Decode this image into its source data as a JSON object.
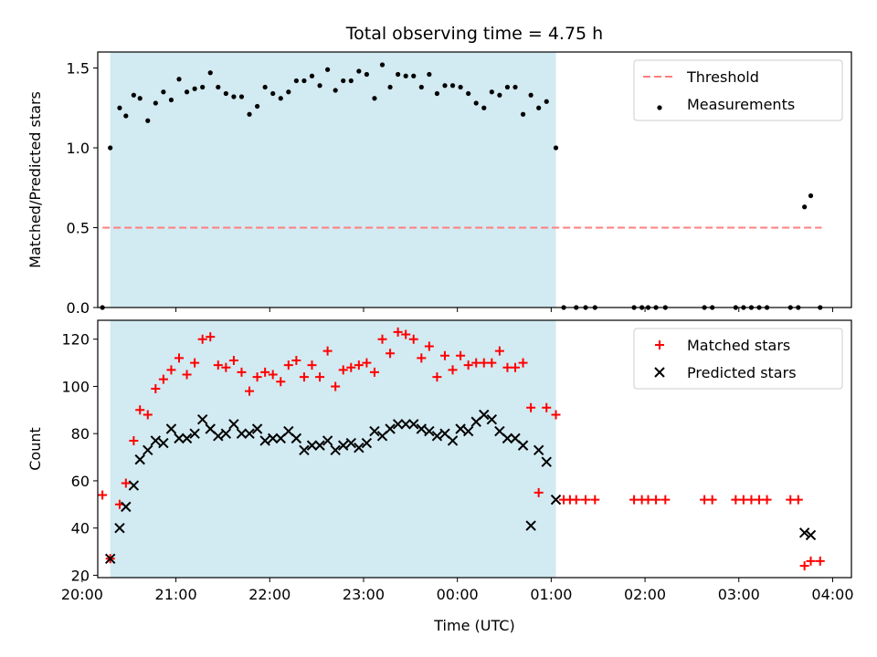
{
  "chart_data": [
    {
      "type": "scatter",
      "title": "Total observing time = 4.75 h",
      "xlabel": "",
      "ylabel": "Matched/Predicted stars",
      "xlim": [
        "20:10",
        "04:12"
      ],
      "ylim": [
        0,
        1.6
      ],
      "yticks": [
        0.0,
        0.5,
        1.0,
        1.5
      ],
      "ytick_labels": [
        "0.0",
        "0.5",
        "1.0",
        "1.5"
      ],
      "grid": false,
      "legend_placement": "top-right",
      "shaded_interval": [
        "20:18",
        "01:03"
      ],
      "shaded_color": "#add8e6",
      "series": [
        {
          "name": "Threshold",
          "kind": "dashed-line",
          "color": "#ff7f7f",
          "points": [
            [
              "20:13",
              0.5
            ],
            [
              "03:53",
              0.5
            ]
          ]
        },
        {
          "name": "Measurements",
          "kind": "dots",
          "color": "#000000",
          "points": [
            [
              "20:13",
              0.0
            ],
            [
              "20:18",
              1.0
            ],
            [
              "20:24",
              1.25
            ],
            [
              "20:28",
              1.2
            ],
            [
              "20:33",
              1.33
            ],
            [
              "20:37",
              1.31
            ],
            [
              "20:42",
              1.17
            ],
            [
              "20:47",
              1.28
            ],
            [
              "20:52",
              1.35
            ],
            [
              "20:57",
              1.3
            ],
            [
              "21:02",
              1.43
            ],
            [
              "21:07",
              1.35
            ],
            [
              "21:12",
              1.37
            ],
            [
              "21:17",
              1.38
            ],
            [
              "21:22",
              1.47
            ],
            [
              "21:27",
              1.38
            ],
            [
              "21:32",
              1.34
            ],
            [
              "21:37",
              1.32
            ],
            [
              "21:42",
              1.32
            ],
            [
              "21:47",
              1.21
            ],
            [
              "21:52",
              1.26
            ],
            [
              "21:57",
              1.38
            ],
            [
              "22:02",
              1.34
            ],
            [
              "22:07",
              1.31
            ],
            [
              "22:12",
              1.35
            ],
            [
              "22:17",
              1.42
            ],
            [
              "22:22",
              1.42
            ],
            [
              "22:27",
              1.45
            ],
            [
              "22:32",
              1.39
            ],
            [
              "22:37",
              1.49
            ],
            [
              "22:42",
              1.36
            ],
            [
              "22:47",
              1.42
            ],
            [
              "22:52",
              1.42
            ],
            [
              "22:57",
              1.48
            ],
            [
              "23:02",
              1.46
            ],
            [
              "23:07",
              1.31
            ],
            [
              "23:12",
              1.52
            ],
            [
              "23:17",
              1.38
            ],
            [
              "23:22",
              1.46
            ],
            [
              "23:27",
              1.45
            ],
            [
              "23:32",
              1.45
            ],
            [
              "23:37",
              1.38
            ],
            [
              "23:42",
              1.46
            ],
            [
              "23:47",
              1.34
            ],
            [
              "23:52",
              1.39
            ],
            [
              "23:57",
              1.39
            ],
            [
              "00:02",
              1.38
            ],
            [
              "00:07",
              1.34
            ],
            [
              "00:12",
              1.28
            ],
            [
              "00:17",
              1.25
            ],
            [
              "00:22",
              1.35
            ],
            [
              "00:27",
              1.33
            ],
            [
              "00:32",
              1.38
            ],
            [
              "00:37",
              1.38
            ],
            [
              "00:42",
              1.21
            ],
            [
              "00:47",
              1.33
            ],
            [
              "00:52",
              1.25
            ],
            [
              "00:57",
              1.29
            ],
            [
              "01:03",
              1.0
            ],
            [
              "01:08",
              0.0
            ],
            [
              "01:16",
              0.0
            ],
            [
              "01:22",
              0.0
            ],
            [
              "01:28",
              0.0
            ],
            [
              "01:53",
              0.0
            ],
            [
              "01:58",
              0.0
            ],
            [
              "02:02",
              0.0
            ],
            [
              "02:07",
              0.0
            ],
            [
              "02:13",
              0.0
            ],
            [
              "02:38",
              0.0
            ],
            [
              "02:43",
              0.0
            ],
            [
              "02:58",
              0.0
            ],
            [
              "03:03",
              0.0
            ],
            [
              "03:08",
              0.0
            ],
            [
              "03:13",
              0.0
            ],
            [
              "03:18",
              0.0
            ],
            [
              "03:33",
              0.0
            ],
            [
              "03:38",
              0.0
            ],
            [
              "03:42",
              0.63
            ],
            [
              "03:46",
              0.7
            ],
            [
              "03:52",
              0.0
            ]
          ]
        }
      ]
    },
    {
      "type": "scatter",
      "title": "",
      "xlabel": "Time (UTC)",
      "ylabel": "Count",
      "xlim": [
        "20:10",
        "04:12"
      ],
      "ylim": [
        19,
        128
      ],
      "xticks": [
        "20:00",
        "21:00",
        "22:00",
        "23:00",
        "00:00",
        "01:00",
        "02:00",
        "03:00",
        "04:00"
      ],
      "yticks": [
        20,
        40,
        60,
        80,
        100,
        120
      ],
      "ytick_labels": [
        "20",
        "40",
        "60",
        "80",
        "100",
        "120"
      ],
      "grid": false,
      "legend_placement": "top-right",
      "shaded_interval": [
        "20:18",
        "01:03"
      ],
      "shaded_color": "#add8e6",
      "series": [
        {
          "name": "Matched stars",
          "kind": "plus",
          "color": "#ff0000",
          "points": [
            [
              "20:13",
              54
            ],
            [
              "20:18",
              27
            ],
            [
              "20:24",
              50
            ],
            [
              "20:28",
              59
            ],
            [
              "20:33",
              77
            ],
            [
              "20:37",
              90
            ],
            [
              "20:42",
              88
            ],
            [
              "20:47",
              99
            ],
            [
              "20:52",
              103
            ],
            [
              "20:57",
              107
            ],
            [
              "21:02",
              112
            ],
            [
              "21:07",
              105
            ],
            [
              "21:12",
              110
            ],
            [
              "21:17",
              120
            ],
            [
              "21:22",
              121
            ],
            [
              "21:27",
              109
            ],
            [
              "21:32",
              108
            ],
            [
              "21:37",
              111
            ],
            [
              "21:42",
              106
            ],
            [
              "21:47",
              98
            ],
            [
              "21:52",
              104
            ],
            [
              "21:57",
              106
            ],
            [
              "22:02",
              105
            ],
            [
              "22:07",
              102
            ],
            [
              "22:12",
              109
            ],
            [
              "22:17",
              111
            ],
            [
              "22:22",
              104
            ],
            [
              "22:27",
              109
            ],
            [
              "22:32",
              104
            ],
            [
              "22:37",
              115
            ],
            [
              "22:42",
              100
            ],
            [
              "22:47",
              107
            ],
            [
              "22:52",
              108
            ],
            [
              "22:57",
              109
            ],
            [
              "23:02",
              110
            ],
            [
              "23:07",
              106
            ],
            [
              "23:12",
              120
            ],
            [
              "23:17",
              114
            ],
            [
              "23:22",
              123
            ],
            [
              "23:27",
              122
            ],
            [
              "23:32",
              120
            ],
            [
              "23:37",
              112
            ],
            [
              "23:42",
              117
            ],
            [
              "23:47",
              104
            ],
            [
              "23:52",
              113
            ],
            [
              "23:57",
              107
            ],
            [
              "00:02",
              113
            ],
            [
              "00:07",
              109
            ],
            [
              "00:12",
              110
            ],
            [
              "00:17",
              110
            ],
            [
              "00:22",
              110
            ],
            [
              "00:27",
              115
            ],
            [
              "00:32",
              108
            ],
            [
              "00:37",
              108
            ],
            [
              "00:42",
              110
            ],
            [
              "00:47",
              91
            ],
            [
              "00:52",
              55
            ],
            [
              "00:57",
              91
            ],
            [
              "01:03",
              88
            ],
            [
              "01:08",
              52
            ],
            [
              "01:12",
              52
            ],
            [
              "01:16",
              52
            ],
            [
              "01:22",
              52
            ],
            [
              "01:28",
              52
            ],
            [
              "01:53",
              52
            ],
            [
              "01:58",
              52
            ],
            [
              "02:02",
              52
            ],
            [
              "02:07",
              52
            ],
            [
              "02:13",
              52
            ],
            [
              "02:38",
              52
            ],
            [
              "02:43",
              52
            ],
            [
              "02:58",
              52
            ],
            [
              "03:03",
              52
            ],
            [
              "03:08",
              52
            ],
            [
              "03:13",
              52
            ],
            [
              "03:18",
              52
            ],
            [
              "03:33",
              52
            ],
            [
              "03:38",
              52
            ],
            [
              "03:42",
              24
            ],
            [
              "03:46",
              26
            ],
            [
              "03:52",
              26
            ]
          ]
        },
        {
          "name": "Predicted stars",
          "kind": "x",
          "color": "#000000",
          "points": [
            [
              "20:18",
              27
            ],
            [
              "20:24",
              40
            ],
            [
              "20:28",
              49
            ],
            [
              "20:33",
              58
            ],
            [
              "20:37",
              69
            ],
            [
              "20:42",
              73
            ],
            [
              "20:47",
              77
            ],
            [
              "20:52",
              76
            ],
            [
              "20:57",
              82
            ],
            [
              "21:02",
              78
            ],
            [
              "21:07",
              78
            ],
            [
              "21:12",
              80
            ],
            [
              "21:17",
              86
            ],
            [
              "21:22",
              82
            ],
            [
              "21:27",
              79
            ],
            [
              "21:32",
              80
            ],
            [
              "21:37",
              84
            ],
            [
              "21:42",
              80
            ],
            [
              "21:47",
              80
            ],
            [
              "21:52",
              82
            ],
            [
              "21:57",
              77
            ],
            [
              "22:02",
              78
            ],
            [
              "22:07",
              78
            ],
            [
              "22:12",
              81
            ],
            [
              "22:17",
              78
            ],
            [
              "22:22",
              73
            ],
            [
              "22:27",
              75
            ],
            [
              "22:32",
              75
            ],
            [
              "22:37",
              77
            ],
            [
              "22:42",
              73
            ],
            [
              "22:47",
              75
            ],
            [
              "22:52",
              76
            ],
            [
              "22:57",
              74
            ],
            [
              "23:02",
              76
            ],
            [
              "23:07",
              81
            ],
            [
              "23:12",
              79
            ],
            [
              "23:17",
              82
            ],
            [
              "23:22",
              84
            ],
            [
              "23:27",
              84
            ],
            [
              "23:32",
              84
            ],
            [
              "23:37",
              82
            ],
            [
              "23:42",
              81
            ],
            [
              "23:47",
              79
            ],
            [
              "23:52",
              80
            ],
            [
              "23:57",
              77
            ],
            [
              "00:02",
              82
            ],
            [
              "00:07",
              81
            ],
            [
              "00:12",
              85
            ],
            [
              "00:17",
              88
            ],
            [
              "00:22",
              86
            ],
            [
              "00:27",
              81
            ],
            [
              "00:32",
              78
            ],
            [
              "00:37",
              78
            ],
            [
              "00:42",
              75
            ],
            [
              "00:47",
              41
            ],
            [
              "00:52",
              73
            ],
            [
              "00:57",
              68
            ],
            [
              "01:03",
              52
            ],
            [
              "03:42",
              38
            ],
            [
              "03:46",
              37
            ]
          ]
        }
      ]
    }
  ]
}
